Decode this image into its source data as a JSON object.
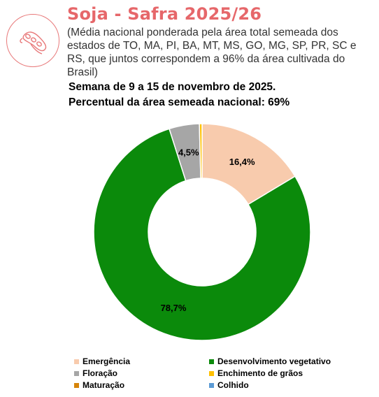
{
  "header": {
    "title": "Soja - Safra 2025/26",
    "subtitle": "(Média nacional ponderada pela área total semeada dos estados de TO, MA, PI, BA, MT, MS, GO, MG, SP, PR, SC e RS, que juntos correspondem a 96% da área cultivada do Brasil)",
    "week": "Semana de 9 a 15 de novembro de 2025.",
    "percent_sown": "Percentual da área semeada nacional: 69%"
  },
  "logo_icon": "soybean-pod-icon",
  "colors": {
    "title": "#e6676a",
    "logo": "#e8797a"
  },
  "chart_data": {
    "type": "pie",
    "donut": true,
    "categories": [
      "Emergência",
      "Desenvolvimento vegetativo",
      "Floração",
      "Enchimento de grãos",
      "Maturação",
      "Colhido"
    ],
    "values": [
      16.4,
      78.7,
      4.5,
      0.4,
      0.0,
      0.0
    ],
    "data_labels": [
      "16,4%",
      "78,7%",
      "4,5%",
      "",
      "",
      ""
    ],
    "colors": [
      "#f8cbad",
      "#0b8a0b",
      "#a6a6a6",
      "#ffc000",
      "#d6840a",
      "#5b9bd5"
    ],
    "legend_position": "bottom"
  },
  "legend": [
    {
      "label": "Emergência",
      "color": "#f8cbad"
    },
    {
      "label": "Desenvolvimento vegetativo",
      "color": "#0b8a0b"
    },
    {
      "label": "Floração",
      "color": "#a6a6a6"
    },
    {
      "label": "Enchimento de grãos",
      "color": "#ffc000"
    },
    {
      "label": "Maturação",
      "color": "#d6840a"
    },
    {
      "label": "Colhido",
      "color": "#5b9bd5"
    }
  ]
}
